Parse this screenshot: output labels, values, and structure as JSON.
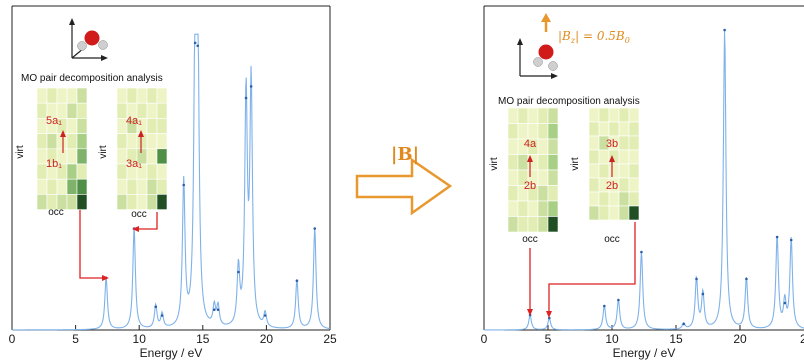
{
  "chart_data": [
    {
      "type": "line",
      "xlabel": "Energy / eV",
      "xlim": [
        0,
        25
      ],
      "ylim": [
        0,
        1
      ],
      "x_ticks": [
        0,
        5,
        10,
        15,
        20,
        25
      ],
      "peaks": [
        {
          "x": 7.4,
          "y": 0.18
        },
        {
          "x": 9.6,
          "y": 0.35
        },
        {
          "x": 11.3,
          "y": 0.08
        },
        {
          "x": 11.8,
          "y": 0.05
        },
        {
          "x": 13.5,
          "y": 0.5
        },
        {
          "x": 14.4,
          "y": 0.99
        },
        {
          "x": 14.6,
          "y": 0.98
        },
        {
          "x": 15.9,
          "y": 0.07
        },
        {
          "x": 16.2,
          "y": 0.07
        },
        {
          "x": 17.8,
          "y": 0.2
        },
        {
          "x": 18.4,
          "y": 0.8
        },
        {
          "x": 18.8,
          "y": 0.84
        },
        {
          "x": 19.9,
          "y": 0.05
        },
        {
          "x": 22.4,
          "y": 0.17
        },
        {
          "x": 23.8,
          "y": 0.35
        }
      ],
      "inset_title": "MO pair decomposition analysis",
      "heatmaps": [
        {
          "y_label": "virt",
          "x_label": "occ",
          "from": "1b₁",
          "to": "5a₁"
        },
        {
          "y_label": "virt",
          "x_label": "occ",
          "from": "3a₁",
          "to": "4a₁"
        }
      ]
    },
    {
      "type": "line",
      "xlabel": "Energy / eV",
      "xlim": [
        0,
        25
      ],
      "ylim": [
        0,
        1
      ],
      "x_ticks": [
        0,
        5,
        10,
        15,
        20
      ],
      "last_tick_partial": "2",
      "peaks": [
        {
          "x": 3.6,
          "y": 0.05
        },
        {
          "x": 5.1,
          "y": 0.04
        },
        {
          "x": 9.4,
          "y": 0.08
        },
        {
          "x": 10.5,
          "y": 0.1
        },
        {
          "x": 12.3,
          "y": 0.26
        },
        {
          "x": 15.6,
          "y": 0.02
        },
        {
          "x": 16.6,
          "y": 0.17
        },
        {
          "x": 17.1,
          "y": 0.12
        },
        {
          "x": 18.8,
          "y": 1.0
        },
        {
          "x": 20.5,
          "y": 0.17
        },
        {
          "x": 22.9,
          "y": 0.31
        },
        {
          "x": 23.5,
          "y": 0.09
        },
        {
          "x": 24.0,
          "y": 0.3
        }
      ],
      "inset_title": "MO pair decomposition analysis",
      "field_label": "|B",
      "field_sub": "z",
      "field_rhs": "| = 0.5B",
      "field_rhs_sub": "0",
      "heatmaps": [
        {
          "y_label": "virt",
          "x_label": "occ",
          "from": "2b",
          "to": "4a"
        },
        {
          "y_label": "virt",
          "x_label": "occ",
          "from": "2b",
          "to": "3b"
        }
      ]
    }
  ],
  "arrow_label": "|B|",
  "colors": {
    "line": "#7fb2ea",
    "arrow": "#e8982e",
    "red": "#cc2222",
    "axis": "#222222"
  }
}
